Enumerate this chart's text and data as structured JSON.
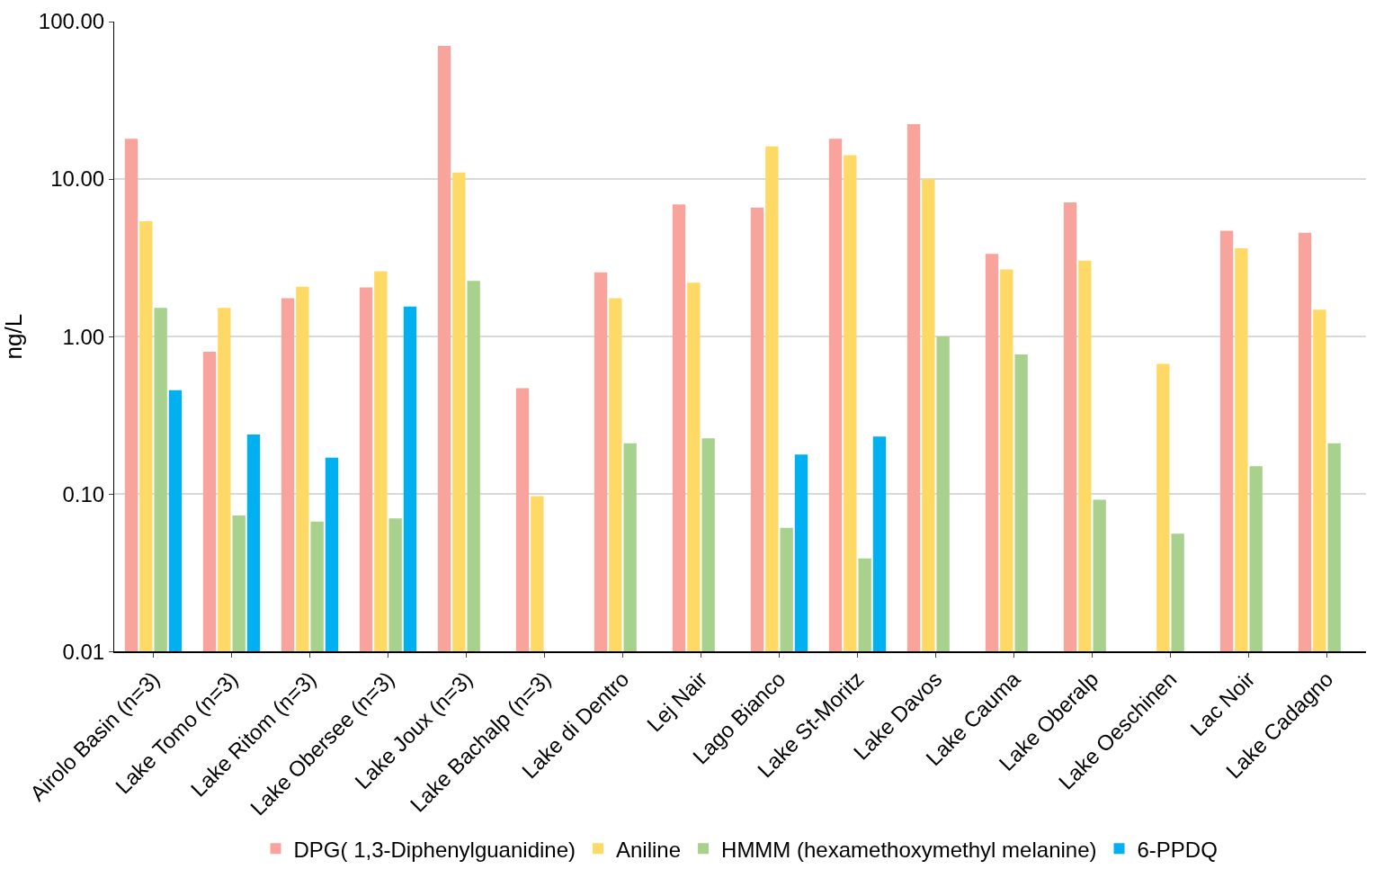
{
  "chart_data": {
    "type": "bar",
    "ylabel": "ng/L",
    "log": "y",
    "grid": "y",
    "legend": "bottom",
    "categories": [
      "Airolo Basin (n=3)",
      "Lake Tomo (n=3)",
      "Lake Ritom (n=3)",
      "Lake Obersee (n=3)",
      "Lake Joux (n=3)",
      "Lake Bachalp (n=3)",
      "Lake di Dentro",
      "Lej Nair",
      "Lago Bianco",
      "Lake St-Moritz",
      "Lake Davos",
      "Lake Cauma",
      "Lake Oberalp",
      "Lake Oeschinen",
      "Lac Noir",
      "Lake Cadagno"
    ],
    "ylim": [
      0.01,
      100
    ],
    "yticks": [
      {
        "value": 0.01,
        "label": "0.01"
      },
      {
        "value": 0.1,
        "label": "0.10"
      },
      {
        "value": 1,
        "label": "1.00"
      },
      {
        "value": 10,
        "label": "10.00"
      },
      {
        "value": 100,
        "label": "100.00"
      }
    ],
    "series": [
      {
        "name": "DPG( 1,3-Diphenylguanidine)",
        "color": "#f8a49c",
        "values": [
          18.0,
          0.8,
          1.75,
          2.05,
          70,
          0.47,
          2.56,
          6.9,
          6.6,
          18.0,
          22.3,
          3.35,
          7.1,
          null,
          4.7,
          4.56
        ]
      },
      {
        "name": "Aniline",
        "color": "#ffd966",
        "values": [
          5.4,
          1.52,
          2.07,
          2.6,
          11.0,
          0.097,
          1.75,
          2.2,
          16.1,
          14.2,
          10.0,
          2.67,
          3.03,
          0.67,
          3.64,
          1.48
        ]
      },
      {
        "name": "HMMM (hexamethoxymethyl melanine)",
        "color": "#a9d18e",
        "values": [
          1.52,
          0.073,
          0.067,
          0.07,
          2.26,
          null,
          0.21,
          0.226,
          0.061,
          0.039,
          1.0,
          0.77,
          0.092,
          0.056,
          0.15,
          0.21
        ]
      },
      {
        "name": "6-PPDQ",
        "color": "#00b0f0",
        "values": [
          0.456,
          0.239,
          0.17,
          1.55,
          null,
          null,
          null,
          null,
          0.178,
          0.232,
          null,
          null,
          null,
          null,
          null,
          null
        ]
      }
    ]
  }
}
